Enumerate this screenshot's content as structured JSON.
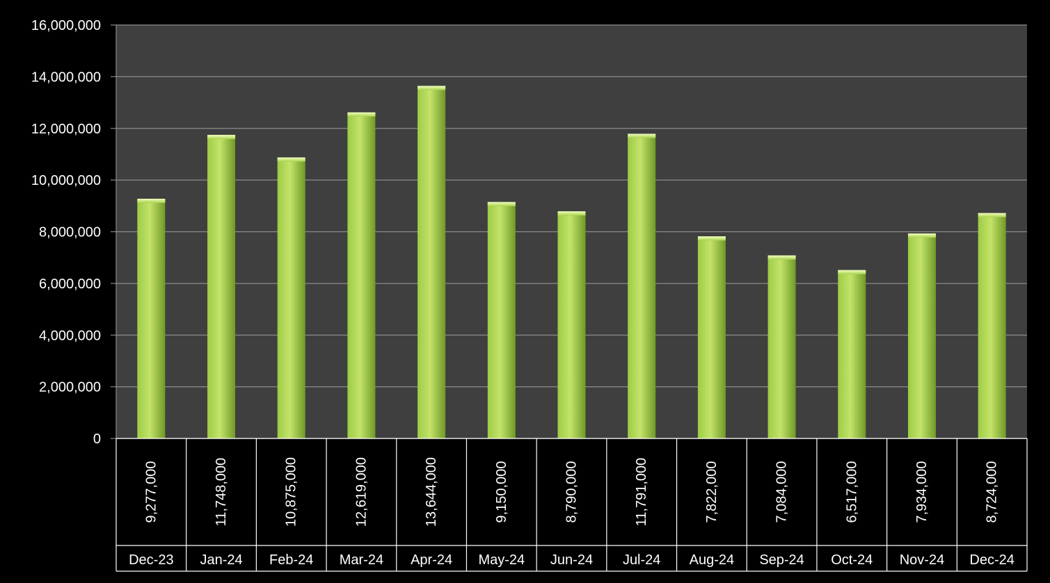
{
  "chart_data": {
    "type": "bar",
    "title": "",
    "xlabel": "",
    "ylabel": "",
    "categories": [
      "Dec-23",
      "Jan-24",
      "Feb-24",
      "Mar-24",
      "Apr-24",
      "May-24",
      "Jun-24",
      "Jul-24",
      "Aug-24",
      "Sep-24",
      "Oct-24",
      "Nov-24",
      "Dec-24"
    ],
    "values": [
      9277000,
      11748000,
      10875000,
      12619000,
      13644000,
      9150000,
      8790000,
      11791000,
      7822000,
      7084000,
      6517000,
      7934000,
      8724000
    ],
    "value_labels": [
      "9,277,000",
      "11,748,000",
      "10,875,000",
      "12,619,000",
      "13,644,000",
      "9,150,000",
      "8,790,000",
      "11,791,000",
      "7,822,000",
      "7,084,000",
      "6,517,000",
      "7,934,000",
      "8,724,000"
    ],
    "yticks": [
      0,
      2000000,
      4000000,
      6000000,
      8000000,
      10000000,
      12000000,
      14000000,
      16000000
    ],
    "ytick_labels": [
      "0",
      "2,000,000",
      "4,000,000",
      "6,000,000",
      "8,000,000",
      "10,000,000",
      "12,000,000",
      "14,000,000",
      "16,000,000"
    ],
    "ylim": [
      0,
      16000000
    ],
    "grid": true,
    "legend": "none",
    "data_table": true,
    "colors": {
      "background": "#000000",
      "plot_area": "#3f3f3f",
      "gridline": "#8c8c8c",
      "bar_light": "#c3e36a",
      "bar_mid": "#9dcc45",
      "bar_dark": "#6f9a26",
      "text": "#ffffff",
      "table_border": "#ffffff"
    }
  }
}
